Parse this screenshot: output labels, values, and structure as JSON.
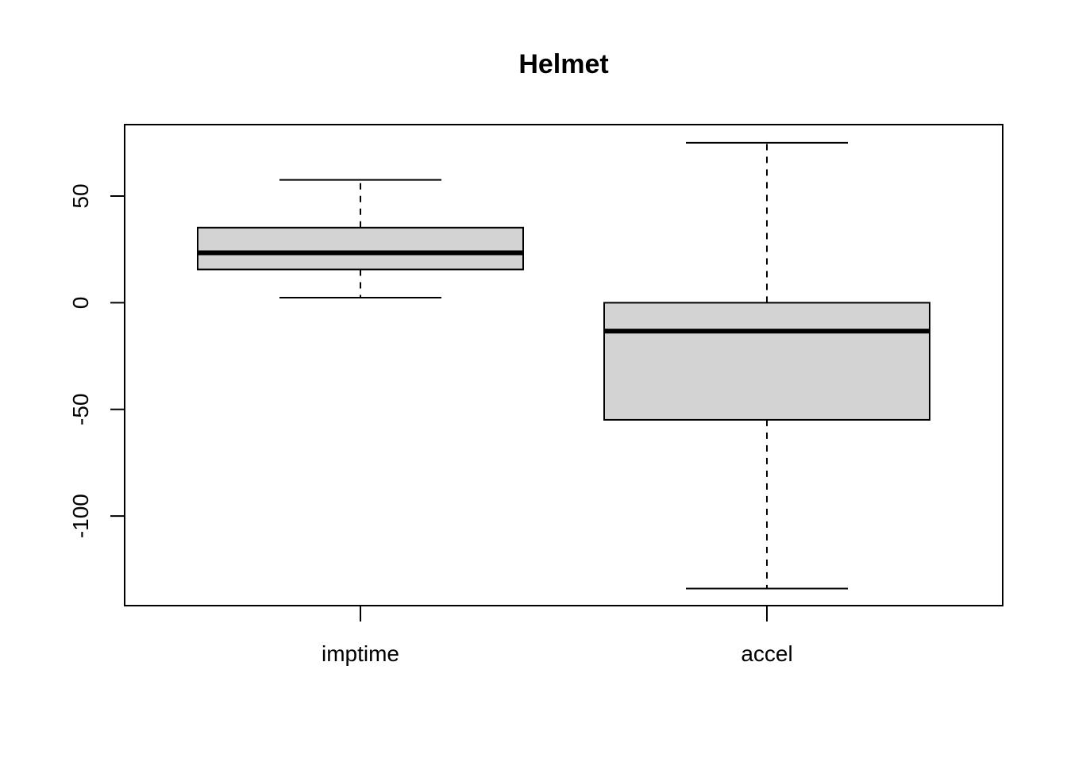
{
  "chart_data": {
    "type": "boxplot",
    "title": "Helmet",
    "xlabel": "",
    "ylabel": "",
    "categories": [
      "imptime",
      "accel"
    ],
    "boxes": [
      {
        "category": "imptime",
        "lower_whisker": 2.4,
        "q1": 15.6,
        "median": 23.4,
        "q3": 35.2,
        "upper_whisker": 57.6
      },
      {
        "category": "accel",
        "lower_whisker": -134,
        "q1": -54.9,
        "median": -13.3,
        "q3": 0,
        "upper_whisker": 75
      }
    ],
    "y_ticks": [
      -100,
      -50,
      0,
      50
    ],
    "y_tick_labels": [
      "-100",
      "-50",
      "0",
      "50"
    ],
    "ylim": [
      -142,
      83.5
    ],
    "box_fill": "#d3d3d3",
    "line_color": "#000000",
    "grid": false,
    "legend": "none"
  }
}
